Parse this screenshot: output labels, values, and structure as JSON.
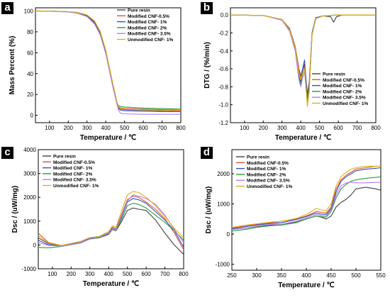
{
  "colors": {
    "Pure resin": "#404040",
    "Modified CNF-0.5%": "#e0553a",
    "Modified CNF- 1%": "#3551c4",
    "Modified CNF- 2%": "#2a9d3a",
    "Modified CNF- 3.5%": "#b57ee6",
    "Unmodified CNF- 1%": "#e0b016"
  },
  "chart_data": [
    {
      "panel": "a",
      "type": "line",
      "xlabel": "Temperature / ℃",
      "ylabel": "Mass Percent (%)",
      "xlim": [
        25,
        800
      ],
      "ylim": [
        -7,
        103
      ],
      "xticks": [
        100,
        200,
        300,
        400,
        500,
        600,
        700,
        800
      ],
      "yticks": [
        0,
        20,
        40,
        60,
        80,
        100
      ],
      "legend": "top-right",
      "series": [
        {
          "name": "Pure resin",
          "x": [
            25,
            100,
            200,
            250,
            300,
            340,
            370,
            400,
            420,
            440,
            460,
            470,
            480,
            500,
            600,
            700,
            800
          ],
          "y": [
            100,
            99.8,
            99.3,
            98.5,
            96,
            90,
            80,
            62,
            45,
            28,
            12,
            7,
            6,
            5.5,
            5,
            4.5,
            4
          ]
        },
        {
          "name": "Modified CNF-0.5%",
          "x": [
            25,
            100,
            200,
            250,
            300,
            340,
            370,
            400,
            420,
            440,
            460,
            470,
            480,
            500,
            600,
            700,
            800
          ],
          "y": [
            100,
            99.8,
            99.2,
            98.3,
            95.5,
            89,
            79,
            61,
            44,
            27,
            12,
            8,
            7,
            6.5,
            6,
            5.5,
            5
          ]
        },
        {
          "name": "Modified CNF- 1%",
          "x": [
            25,
            100,
            200,
            250,
            300,
            340,
            370,
            400,
            420,
            440,
            460,
            470,
            480,
            500,
            600,
            700,
            800
          ],
          "y": [
            100,
            99.8,
            99.2,
            98.2,
            95.2,
            88.5,
            78.5,
            60,
            43,
            26,
            11,
            6,
            5,
            4.5,
            4,
            3.7,
            3.5
          ]
        },
        {
          "name": "Modified CNF- 2%",
          "x": [
            25,
            100,
            200,
            250,
            300,
            340,
            370,
            400,
            420,
            440,
            460,
            470,
            480,
            500,
            600,
            700,
            800
          ],
          "y": [
            100,
            99.8,
            99.1,
            98,
            95,
            88,
            78,
            60,
            43,
            26,
            11,
            9,
            8.5,
            8,
            7,
            6.5,
            6
          ]
        },
        {
          "name": "Modified CNF- 3.5%",
          "x": [
            25,
            100,
            200,
            250,
            300,
            340,
            370,
            400,
            420,
            440,
            460,
            470,
            480,
            500,
            600,
            700,
            800
          ],
          "y": [
            100,
            99.7,
            99,
            97.8,
            94.5,
            87.5,
            77,
            59,
            42,
            25,
            10,
            4,
            2,
            1.5,
            1,
            1,
            1
          ]
        },
        {
          "name": "Unmodified CNF- 1%",
          "x": [
            25,
            100,
            200,
            250,
            300,
            340,
            370,
            400,
            420,
            440,
            460,
            470,
            480,
            500,
            600,
            700,
            800
          ],
          "y": [
            100,
            99.8,
            99.3,
            98.6,
            96.3,
            90.5,
            80.5,
            62.5,
            45.5,
            28.5,
            12.5,
            7.5,
            6.2,
            5.8,
            5.2,
            4.8,
            4.3
          ]
        }
      ]
    },
    {
      "panel": "b",
      "type": "line",
      "xlabel": "Temperature / ℃",
      "ylabel": "DTG / (%/min)",
      "xlim": [
        25,
        800
      ],
      "ylim": [
        -1.2,
        0.08
      ],
      "xticks": [
        100,
        200,
        300,
        400,
        500,
        600,
        700,
        800
      ],
      "yticks": [
        0.0,
        -0.2,
        -0.4,
        -0.6,
        -0.8,
        -1.0,
        -1.2
      ],
      "legend": "bottom-right",
      "series": [
        {
          "name": "Pure resin",
          "x": [
            25,
            200,
            300,
            340,
            370,
            390,
            400,
            410,
            420,
            435,
            445,
            460,
            480,
            520,
            560,
            575,
            590,
            620,
            800
          ],
          "y": [
            0,
            -0.005,
            -0.05,
            -0.15,
            -0.35,
            -0.6,
            -0.68,
            -0.6,
            -0.55,
            -0.88,
            -0.75,
            -0.2,
            -0.03,
            -0.01,
            -0.02,
            -0.08,
            -0.02,
            0,
            0
          ]
        },
        {
          "name": "Modified CNF-0.5%",
          "x": [
            25,
            200,
            300,
            340,
            370,
            390,
            400,
            410,
            420,
            435,
            445,
            460,
            480,
            520,
            600,
            800
          ],
          "y": [
            0,
            -0.005,
            -0.05,
            -0.16,
            -0.36,
            -0.62,
            -0.7,
            -0.62,
            -0.57,
            -0.92,
            -0.78,
            -0.2,
            -0.03,
            -0.01,
            0,
            0
          ]
        },
        {
          "name": "Modified CNF- 1%",
          "x": [
            25,
            200,
            300,
            340,
            370,
            390,
            400,
            410,
            420,
            435,
            445,
            460,
            480,
            520,
            600,
            800
          ],
          "y": [
            0,
            -0.005,
            -0.05,
            -0.17,
            -0.38,
            -0.68,
            -0.75,
            -0.6,
            -0.5,
            -0.95,
            -0.8,
            -0.2,
            -0.03,
            -0.01,
            0,
            0
          ]
        },
        {
          "name": "Modified CNF- 2%",
          "x": [
            25,
            200,
            300,
            340,
            370,
            390,
            400,
            410,
            420,
            435,
            445,
            460,
            480,
            520,
            600,
            800
          ],
          "y": [
            0,
            -0.005,
            -0.05,
            -0.17,
            -0.38,
            -0.7,
            -0.78,
            -0.66,
            -0.6,
            -0.97,
            -0.82,
            -0.22,
            -0.04,
            -0.01,
            0,
            0
          ]
        },
        {
          "name": "Modified CNF- 3.5%",
          "x": [
            25,
            200,
            300,
            340,
            370,
            390,
            400,
            410,
            420,
            435,
            445,
            460,
            480,
            520,
            600,
            800
          ],
          "y": [
            0,
            -0.005,
            -0.06,
            -0.18,
            -0.4,
            -0.72,
            -0.8,
            -0.7,
            -0.64,
            -1.0,
            -0.85,
            -0.22,
            -0.04,
            -0.01,
            0,
            0
          ]
        },
        {
          "name": "Unmodified CNF- 1%",
          "x": [
            25,
            200,
            300,
            340,
            370,
            390,
            400,
            410,
            420,
            435,
            445,
            460,
            480,
            520,
            600,
            800
          ],
          "y": [
            0,
            -0.005,
            -0.05,
            -0.16,
            -0.37,
            -0.65,
            -0.72,
            -0.65,
            -0.6,
            -1.02,
            -0.85,
            -0.22,
            -0.04,
            -0.01,
            0,
            0
          ]
        }
      ]
    },
    {
      "panel": "c",
      "type": "line",
      "xlabel": "Temperature / ℃",
      "ylabel": "Dsc / (uW/mg)",
      "xlim": [
        25,
        800
      ],
      "ylim": [
        -1000,
        4000
      ],
      "xticks": [
        100,
        200,
        300,
        400,
        500,
        600,
        700,
        800
      ],
      "yticks": [
        -1000,
        0,
        1000,
        2000,
        3000,
        4000
      ],
      "legend": "top-left",
      "series": [
        {
          "name": "Pure resin",
          "x": [
            25,
            80,
            150,
            250,
            300,
            350,
            400,
            420,
            440,
            470,
            500,
            530,
            560,
            600,
            650,
            700,
            750,
            800
          ],
          "y": [
            300,
            50,
            -30,
            100,
            250,
            300,
            450,
            650,
            600,
            1000,
            1450,
            1550,
            1500,
            1450,
            1050,
            500,
            0,
            -400
          ]
        },
        {
          "name": "Modified CNF-0.5%",
          "x": [
            25,
            80,
            150,
            250,
            300,
            350,
            400,
            420,
            440,
            470,
            500,
            530,
            560,
            600,
            650,
            700,
            750,
            800
          ],
          "y": [
            500,
            100,
            -20,
            150,
            300,
            350,
            550,
            750,
            700,
            1300,
            1900,
            2050,
            2000,
            1800,
            1500,
            1100,
            500,
            -200
          ]
        },
        {
          "name": "Modified CNF- 1%",
          "x": [
            25,
            80,
            150,
            250,
            300,
            350,
            400,
            420,
            440,
            470,
            500,
            530,
            560,
            600,
            650,
            700,
            750,
            800
          ],
          "y": [
            200,
            0,
            -40,
            100,
            280,
            330,
            500,
            700,
            650,
            1200,
            1800,
            1950,
            1900,
            1750,
            1400,
            1050,
            600,
            -100
          ]
        },
        {
          "name": "Modified CNF- 2%",
          "x": [
            25,
            80,
            150,
            250,
            300,
            350,
            400,
            420,
            440,
            470,
            500,
            530,
            560,
            600,
            650,
            700,
            750,
            800
          ],
          "y": [
            -100,
            -120,
            -60,
            80,
            250,
            300,
            480,
            650,
            620,
            1100,
            1650,
            1750,
            1700,
            1550,
            1250,
            950,
            600,
            200
          ]
        },
        {
          "name": "Modified CNF- 3.5%",
          "x": [
            25,
            80,
            150,
            250,
            300,
            350,
            400,
            420,
            440,
            470,
            500,
            530,
            560,
            600,
            650,
            700,
            750,
            800
          ],
          "y": [
            100,
            -20,
            -50,
            90,
            260,
            320,
            490,
            680,
            640,
            1250,
            1850,
            2100,
            2050,
            1950,
            1700,
            1250,
            650,
            100
          ]
        },
        {
          "name": "Unmodified CNF- 1%",
          "x": [
            25,
            80,
            150,
            250,
            300,
            350,
            400,
            420,
            440,
            470,
            500,
            530,
            560,
            600,
            650,
            700,
            750,
            800
          ],
          "y": [
            400,
            80,
            -30,
            150,
            310,
            360,
            560,
            800,
            760,
            1450,
            2100,
            2250,
            2200,
            2000,
            1650,
            1200,
            700,
            300
          ]
        }
      ]
    },
    {
      "panel": "d",
      "type": "line",
      "xlabel": "Temperature / ℃",
      "ylabel": "Dsc / (uW/mg)",
      "xlim": [
        250,
        550
      ],
      "ylim": [
        -1200,
        2800
      ],
      "xticks": [
        250,
        300,
        350,
        400,
        450,
        500,
        550
      ],
      "yticks": [
        -1000,
        0,
        1000,
        2000
      ],
      "legend": "top-left",
      "series": [
        {
          "name": "Pure resin",
          "x": [
            250,
            280,
            300,
            330,
            350,
            380,
            400,
            420,
            430,
            440,
            450,
            460,
            470,
            480,
            490,
            500,
            520,
            540,
            550
          ],
          "y": [
            150,
            200,
            250,
            300,
            300,
            400,
            500,
            600,
            560,
            500,
            600,
            900,
            1050,
            1150,
            1300,
            1500,
            1550,
            1500,
            1450
          ]
        },
        {
          "name": "Modified CNF-0.5%",
          "x": [
            250,
            280,
            300,
            330,
            350,
            380,
            400,
            420,
            430,
            440,
            450,
            460,
            470,
            480,
            490,
            500,
            520,
            540,
            550
          ],
          "y": [
            200,
            280,
            320,
            380,
            420,
            500,
            600,
            750,
            720,
            700,
            900,
            1500,
            1800,
            1950,
            2050,
            2150,
            2200,
            2250,
            2250
          ]
        },
        {
          "name": "Modified CNF- 1%",
          "x": [
            250,
            280,
            300,
            330,
            350,
            380,
            400,
            420,
            430,
            440,
            450,
            460,
            470,
            480,
            490,
            500,
            520,
            540,
            550
          ],
          "y": [
            180,
            250,
            300,
            350,
            380,
            480,
            580,
            700,
            660,
            650,
            850,
            1400,
            1750,
            1900,
            2000,
            2100,
            2150,
            2180,
            2200
          ]
        },
        {
          "name": "Modified CNF- 2%",
          "x": [
            250,
            280,
            300,
            330,
            350,
            380,
            400,
            420,
            430,
            440,
            450,
            460,
            470,
            480,
            490,
            500,
            520,
            540,
            550
          ],
          "y": [
            100,
            160,
            220,
            280,
            300,
            380,
            500,
            600,
            580,
            560,
            750,
            1200,
            1500,
            1650,
            1750,
            1800,
            1850,
            1880,
            1900
          ]
        },
        {
          "name": "Modified CNF- 3.5%",
          "x": [
            250,
            280,
            300,
            330,
            350,
            380,
            400,
            420,
            430,
            440,
            450,
            460,
            470,
            480,
            490,
            500,
            520,
            540,
            550
          ],
          "y": [
            150,
            200,
            260,
            320,
            330,
            420,
            540,
            650,
            620,
            600,
            800,
            1300,
            1600,
            1700,
            1720,
            1700,
            1700,
            1710,
            1720
          ]
        },
        {
          "name": "Unmodified CNF- 1%",
          "x": [
            250,
            280,
            300,
            330,
            350,
            380,
            400,
            420,
            430,
            440,
            450,
            460,
            470,
            480,
            490,
            500,
            520,
            540,
            550
          ],
          "y": [
            220,
            300,
            340,
            400,
            420,
            520,
            650,
            850,
            800,
            780,
            1000,
            1600,
            1900,
            2050,
            2150,
            2200,
            2250,
            2250,
            2250
          ]
        }
      ]
    }
  ]
}
